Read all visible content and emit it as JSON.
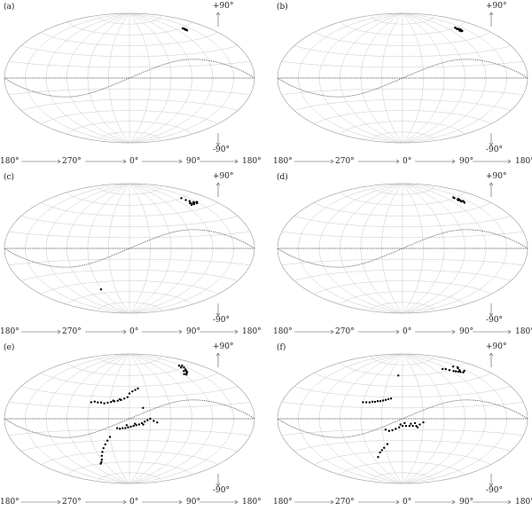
{
  "figure": {
    "panels": [
      {
        "label": "(a)"
      },
      {
        "label": "(b)"
      },
      {
        "label": "(c)"
      },
      {
        "label": "(d)"
      },
      {
        "label": "(e)"
      },
      {
        "label": "(f)"
      }
    ],
    "north_label": "+90°",
    "south_label": "-90°",
    "axis_labels": [
      "180°",
      "270°",
      "0°",
      "90°",
      "180°"
    ]
  },
  "chart_data": [
    {
      "type": "scatter",
      "projection": "aitoff",
      "panel": "(a)",
      "colors": {
        "points": "#000000",
        "grid": "#c9c9c9",
        "plane": "#444444"
      },
      "points": [
        [
          -137,
          58
        ],
        [
          -138,
          57
        ],
        [
          -136,
          59
        ],
        [
          -137,
          59
        ],
        [
          -138,
          58
        ],
        [
          -136,
          57
        ],
        [
          -137,
          56
        ]
      ]
    },
    {
      "type": "scatter",
      "projection": "aitoff",
      "panel": "(b)",
      "colors": {
        "points": "#000000",
        "grid": "#c9c9c9",
        "plane": "#444444"
      },
      "points": [
        [
          -140,
          56
        ],
        [
          -138,
          57
        ],
        [
          -136,
          58
        ],
        [
          -139,
          55
        ],
        [
          -137,
          59
        ],
        [
          -135,
          56
        ],
        [
          -141,
          57
        ],
        [
          -138,
          60
        ],
        [
          -136,
          55
        ],
        [
          -139,
          58
        ]
      ]
    },
    {
      "type": "scatter",
      "projection": "aitoff",
      "panel": "(c)",
      "colors": {
        "points": "#000000",
        "grid": "#c9c9c9",
        "plane": "#444444"
      },
      "points": [
        [
          -150,
          52
        ],
        [
          -146,
          51
        ],
        [
          -142,
          52
        ],
        [
          -138,
          51
        ],
        [
          -136,
          53
        ],
        [
          -140,
          55
        ],
        [
          -137,
          57
        ],
        [
          -136,
          60
        ],
        [
          -134,
          53
        ],
        [
          -132,
          51
        ],
        [
          -144,
          53
        ],
        [
          -148,
          52
        ],
        [
          -139,
          52
        ],
        [
          62,
          -55
        ]
      ]
    },
    {
      "type": "scatter",
      "projection": "aitoff",
      "panel": "(d)",
      "colors": {
        "points": "#000000",
        "grid": "#c9c9c9",
        "plane": "#444444"
      },
      "points": [
        [
          -140,
          54
        ],
        [
          -138,
          56
        ],
        [
          -137,
          58
        ],
        [
          -136,
          60
        ],
        [
          -139,
          57
        ],
        [
          -141,
          55
        ],
        [
          -135,
          57
        ],
        [
          -138,
          53
        ],
        [
          -137,
          61
        ],
        [
          -140,
          58
        ],
        [
          -136,
          55
        ]
      ]
    },
    {
      "type": "scatter",
      "projection": "aitoff",
      "panel": "(e)",
      "colors": {
        "points": "#000000",
        "grid": "#c9c9c9",
        "plane": "#444444"
      },
      "points": [
        [
          -150,
          62
        ],
        [
          -145,
          60
        ],
        [
          -140,
          58
        ],
        [
          -137,
          57
        ],
        [
          -135,
          56
        ],
        [
          -133,
          55
        ],
        [
          -128,
          54
        ],
        [
          -125,
          53
        ],
        [
          -122,
          54
        ],
        [
          -140,
          61
        ],
        [
          -144,
          63
        ],
        [
          -131,
          57
        ],
        [
          -15,
          42
        ],
        [
          -10,
          40
        ],
        [
          -5,
          38
        ],
        [
          0,
          35
        ],
        [
          3,
          30
        ],
        [
          8,
          28
        ],
        [
          13,
          26
        ],
        [
          18,
          25
        ],
        [
          23,
          24
        ],
        [
          28,
          23
        ],
        [
          33,
          22
        ],
        [
          38,
          21
        ],
        [
          43,
          22
        ],
        [
          48,
          22
        ],
        [
          53,
          23
        ],
        [
          58,
          22
        ],
        [
          15,
          27
        ],
        [
          25,
          25
        ],
        [
          -30,
          0
        ],
        [
          -26,
          -2
        ],
        [
          -22,
          -4
        ],
        [
          -18,
          -6
        ],
        [
          -14,
          -8
        ],
        [
          -10,
          -9
        ],
        [
          -6,
          -10
        ],
        [
          -2,
          -11
        ],
        [
          2,
          -12
        ],
        [
          6,
          -13
        ],
        [
          10,
          -13
        ],
        [
          14,
          -14
        ],
        [
          18,
          -13
        ],
        [
          -20,
          -8
        ],
        [
          -8,
          -7
        ],
        [
          4,
          -9
        ],
        [
          -40,
          -5
        ],
        [
          -35,
          -3
        ],
        [
          30,
          -25
        ],
        [
          35,
          -30
        ],
        [
          40,
          -35
        ],
        [
          45,
          -40
        ],
        [
          50,
          -45
        ],
        [
          55,
          -50
        ],
        [
          60,
          -55
        ],
        [
          65,
          -58
        ],
        [
          70,
          -60
        ],
        [
          -20,
          15
        ]
      ]
    },
    {
      "type": "scatter",
      "projection": "aitoff",
      "panel": "(f)",
      "colors": {
        "points": "#000000",
        "grid": "#c9c9c9",
        "plane": "#444444"
      },
      "points": [
        [
          -147,
          60
        ],
        [
          -143,
          59
        ],
        [
          -139,
          57
        ],
        [
          -136,
          56
        ],
        [
          -134,
          55
        ],
        [
          -131,
          56
        ],
        [
          -128,
          57
        ],
        [
          -125,
          58
        ],
        [
          -120,
          60
        ],
        [
          -116,
          62
        ],
        [
          -110,
          63
        ],
        [
          -138,
          54
        ],
        [
          -142,
          62
        ],
        [
          -145,
          55
        ],
        [
          10,
          60
        ],
        [
          18,
          28
        ],
        [
          22,
          27
        ],
        [
          26,
          26
        ],
        [
          30,
          25
        ],
        [
          34,
          24
        ],
        [
          38,
          24
        ],
        [
          42,
          23
        ],
        [
          46,
          23
        ],
        [
          50,
          22
        ],
        [
          55,
          22
        ],
        [
          60,
          22
        ],
        [
          -25,
          -8
        ],
        [
          -20,
          -10
        ],
        [
          -15,
          -10
        ],
        [
          -10,
          -10
        ],
        [
          -5,
          -10
        ],
        [
          0,
          -10
        ],
        [
          5,
          -12
        ],
        [
          10,
          -14
        ],
        [
          15,
          -16
        ],
        [
          20,
          -17
        ],
        [
          -22,
          -12
        ],
        [
          -18,
          -6
        ],
        [
          -12,
          -7
        ],
        [
          -3,
          -6
        ],
        [
          3,
          -8
        ],
        [
          -30,
          -5
        ],
        [
          25,
          -15
        ],
        [
          32,
          -40
        ],
        [
          37,
          -43
        ],
        [
          42,
          -46
        ],
        [
          50,
          -52
        ],
        [
          25,
          -35
        ]
      ]
    }
  ]
}
